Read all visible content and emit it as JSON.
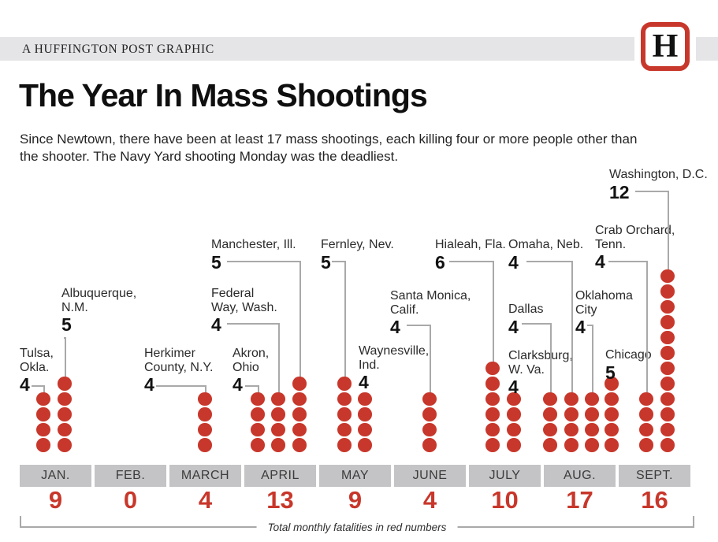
{
  "header": {
    "kicker": "A HUFFINGTON POST GRAPHIC",
    "logo_letter": "H"
  },
  "title": "The Year In Mass Shootings",
  "subtitle": {
    "line1": "Since Newtown, there have been at least 17 mass shootings, each killing four or more people other than",
    "line2": "the shooter. The Navy Yard shooting Monday was the deadliest."
  },
  "footnote": "Total monthly fatalities in red numbers",
  "colors": {
    "red": "#c8372b",
    "header_bar": "#e5e5e7",
    "month_box": "#c4c4c6",
    "connector_gray": "#a9a9a9"
  },
  "chart_data": {
    "type": "bar",
    "style": "unit-dot pictograph — one red dot per fatality, one column per shooting, grouped by month",
    "title": "The Year In Mass Shootings",
    "categories": [
      "JAN.",
      "FEB.",
      "MARCH",
      "APRIL",
      "MAY",
      "JUNE",
      "JULY",
      "AUG.",
      "SEPT."
    ],
    "monthly_totals": [
      9,
      0,
      4,
      13,
      9,
      4,
      10,
      17,
      16
    ],
    "legend": "Total monthly fatalities in red numbers",
    "events": [
      {
        "city": "Tulsa, Okla.",
        "city_lines": [
          "Tulsa,",
          "Okla."
        ],
        "month": "JAN.",
        "fatalities": 4
      },
      {
        "city": "Albuquerque, N.M.",
        "city_lines": [
          "Albuquerque,",
          "N.M."
        ],
        "month": "JAN.",
        "fatalities": 5
      },
      {
        "city": "Herkimer County, N.Y.",
        "city_lines": [
          "Herkimer",
          "County, N.Y."
        ],
        "month": "MARCH",
        "fatalities": 4
      },
      {
        "city": "Akron, Ohio",
        "city_lines": [
          "Akron,",
          "Ohio"
        ],
        "month": "APRIL",
        "fatalities": 4
      },
      {
        "city": "Federal Way, Wash.",
        "city_lines": [
          "Federal",
          "Way, Wash."
        ],
        "month": "APRIL",
        "fatalities": 4
      },
      {
        "city": "Manchester, Ill.",
        "city_lines": [
          "Manchester, Ill."
        ],
        "month": "APRIL",
        "fatalities": 5
      },
      {
        "city": "Fernley, Nev.",
        "city_lines": [
          "Fernley, Nev."
        ],
        "month": "MAY",
        "fatalities": 5
      },
      {
        "city": "Waynesville, Ind.",
        "city_lines": [
          "Waynesville,",
          "Ind."
        ],
        "month": "MAY",
        "fatalities": 4
      },
      {
        "city": "Santa Monica, Calif.",
        "city_lines": [
          "Santa Monica,",
          "Calif."
        ],
        "month": "JUNE",
        "fatalities": 4
      },
      {
        "city": "Hialeah, Fla.",
        "city_lines": [
          "Hialeah, Fla."
        ],
        "month": "JULY",
        "fatalities": 6
      },
      {
        "city": "Clarksburg, W. Va.",
        "city_lines": [
          "Clarksburg,",
          "W. Va."
        ],
        "month": "JULY",
        "fatalities": 4
      },
      {
        "city": "Dallas",
        "city_lines": [
          "Dallas"
        ],
        "month": "AUG.",
        "fatalities": 4
      },
      {
        "city": "Omaha, Neb.",
        "city_lines": [
          "Omaha, Neb."
        ],
        "month": "AUG.",
        "fatalities": 4
      },
      {
        "city": "Oklahoma City",
        "city_lines": [
          "Oklahoma",
          "City"
        ],
        "month": "AUG.",
        "fatalities": 4
      },
      {
        "city": "Chicago",
        "city_lines": [
          "Chicago"
        ],
        "month": "AUG.",
        "fatalities": 5
      },
      {
        "city": "Crab Orchard, Tenn.",
        "city_lines": [
          "Crab Orchard,",
          "Tenn."
        ],
        "month": "SEPT.",
        "fatalities": 4
      },
      {
        "city": "Washington, D.C.",
        "city_lines": [
          "Washington, D.C."
        ],
        "month": "SEPT.",
        "fatalities": 12
      }
    ]
  }
}
